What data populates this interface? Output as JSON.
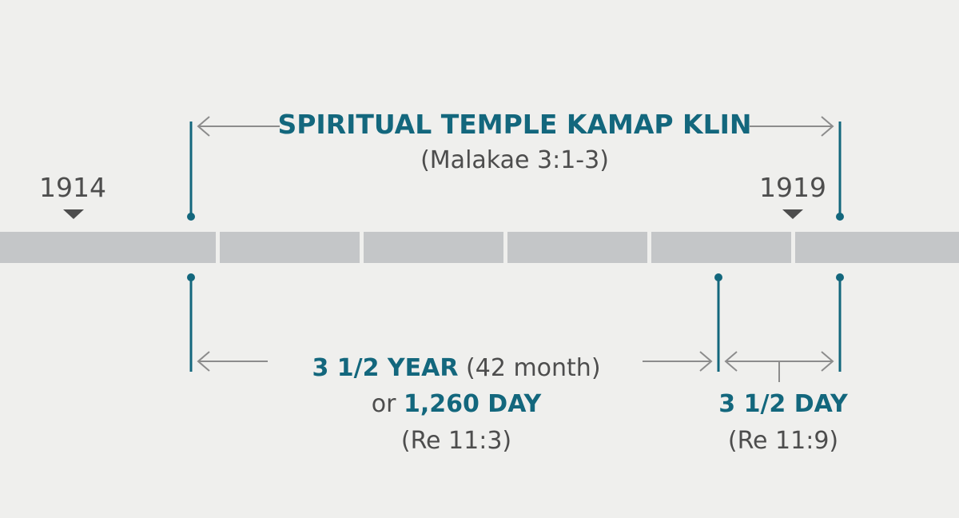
{
  "colors": {
    "background": "#efefed",
    "accent": "#13677d",
    "bar": "#c4c6c8",
    "text": "#4d4d4d",
    "arrow": "#8c8c8c"
  },
  "top": {
    "title": "SPIRITUAL TEMPLE KAMAP KLIN",
    "reference": "(Malakae 3:1-3)"
  },
  "years": {
    "start_label": "1914",
    "end_label": "1919"
  },
  "bottom_left": {
    "duration_bold": "3 1/2 YEAR",
    "duration_plain": "(42 month)",
    "or_word": "or",
    "days_bold": "1,260 DAY",
    "reference": "(Re 11:3)"
  },
  "bottom_right": {
    "duration_bold": "3 1/2 DAY",
    "reference": "(Re 11:9)"
  },
  "icons": {
    "year_marker": "triangle-down-icon",
    "arrow_left": "arrow-left-icon",
    "arrow_right": "arrow-right-icon"
  }
}
